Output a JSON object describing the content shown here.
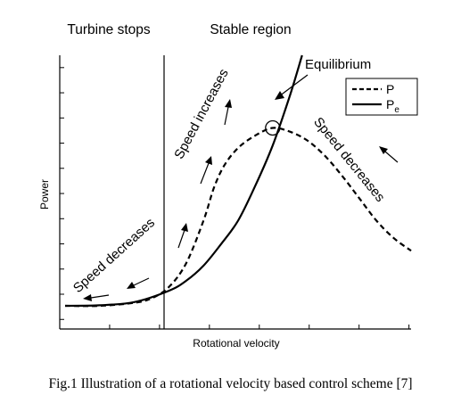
{
  "chart_data": {
    "type": "line",
    "title": "",
    "xlabel": "Rotational velocity",
    "ylabel": "Power",
    "grid": false,
    "legend_position": "top-right",
    "regions": [
      {
        "label": "Turbine stops"
      },
      {
        "label": "Stable region"
      }
    ],
    "series": [
      {
        "name": "P",
        "legend_main": "P",
        "legend_sub": "",
        "style": "dashed",
        "color": "#000000",
        "points": [
          [
            0.0,
            0.0
          ],
          [
            0.1,
            0.0
          ],
          [
            0.2,
            0.012
          ],
          [
            0.25,
            0.03
          ],
          [
            0.3,
            0.075
          ],
          [
            0.35,
            0.17
          ],
          [
            0.4,
            0.34
          ],
          [
            0.43,
            0.47
          ],
          [
            0.46,
            0.56
          ],
          [
            0.5,
            0.63
          ],
          [
            0.55,
            0.68
          ],
          [
            0.6,
            0.71
          ],
          [
            0.65,
            0.695
          ],
          [
            0.7,
            0.66
          ],
          [
            0.75,
            0.6
          ],
          [
            0.8,
            0.52
          ],
          [
            0.85,
            0.43
          ],
          [
            0.9,
            0.34
          ],
          [
            0.95,
            0.27
          ],
          [
            1.0,
            0.22
          ]
        ]
      },
      {
        "name": "Pe",
        "legend_main": "P",
        "legend_sub": "e",
        "style": "solid",
        "color": "#000000",
        "points": [
          [
            0.0,
            0.0
          ],
          [
            0.1,
            0.002
          ],
          [
            0.2,
            0.015
          ],
          [
            0.3,
            0.06
          ],
          [
            0.35,
            0.1
          ],
          [
            0.4,
            0.16
          ],
          [
            0.45,
            0.245
          ],
          [
            0.5,
            0.34
          ],
          [
            0.55,
            0.48
          ],
          [
            0.6,
            0.64
          ],
          [
            0.65,
            0.84
          ],
          [
            0.685,
            1.0
          ]
        ]
      }
    ],
    "vertical_line_x": 0.3,
    "equilibrium": {
      "label": "Equilibrium",
      "x": 0.6,
      "y": 0.71
    },
    "annotations": [
      {
        "id": "speed-decreases-left",
        "text": "Speed decreases"
      },
      {
        "id": "speed-increases",
        "text": "Speed increases"
      },
      {
        "id": "speed-decreases-right",
        "text": "Speed decreases"
      }
    ],
    "xlim": [
      0,
      1
    ],
    "ylim": [
      0,
      1
    ],
    "x_ticks": [
      0,
      0.142,
      0.284,
      0.426,
      0.568,
      0.71,
      0.852,
      0.994
    ],
    "y_ticks": [
      0.035,
      0.127,
      0.219,
      0.311,
      0.403,
      0.495,
      0.587,
      0.679,
      0.771,
      0.863,
      0.955
    ]
  },
  "caption": "Fig.1 Illustration of a rotational velocity based control scheme [7]"
}
